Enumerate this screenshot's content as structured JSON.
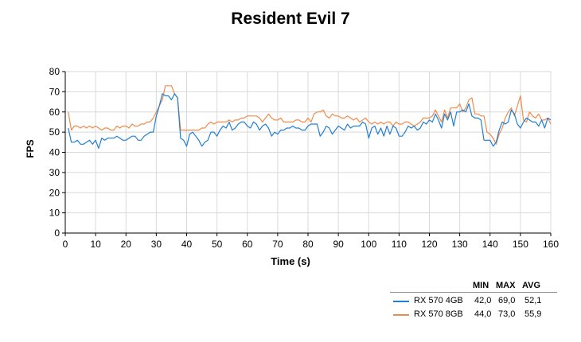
{
  "chart_data": {
    "type": "line",
    "title": "Resident Evil 7",
    "xlabel": "Time (s)",
    "ylabel": "FPS",
    "xlim": [
      0,
      160
    ],
    "ylim": [
      0,
      80
    ],
    "xticks": [
      0,
      10,
      20,
      30,
      40,
      50,
      60,
      70,
      80,
      90,
      100,
      110,
      120,
      130,
      140,
      150,
      160
    ],
    "yticks": [
      0,
      10,
      20,
      30,
      40,
      50,
      60,
      70,
      80
    ],
    "grid": true,
    "legend_position": "bottom-right",
    "legend_headers": [
      "MIN",
      "MAX",
      "AVG"
    ],
    "series": [
      {
        "name": "RX 570 4GB",
        "color": "#1f7fd4",
        "min": "42,0",
        "max": "69,0",
        "avg": "52,1",
        "x": [
          1,
          2,
          3,
          4,
          5,
          6,
          7,
          8,
          9,
          10,
          11,
          12,
          13,
          14,
          15,
          16,
          17,
          18,
          19,
          20,
          21,
          22,
          23,
          24,
          25,
          26,
          27,
          28,
          29,
          30,
          31,
          32,
          33,
          34,
          35,
          36,
          37,
          38,
          39,
          40,
          41,
          42,
          43,
          44,
          45,
          46,
          47,
          48,
          49,
          50,
          51,
          52,
          53,
          54,
          55,
          56,
          57,
          58,
          59,
          60,
          61,
          62,
          63,
          64,
          65,
          66,
          67,
          68,
          69,
          70,
          71,
          72,
          73,
          74,
          75,
          76,
          77,
          78,
          79,
          80,
          81,
          82,
          83,
          84,
          85,
          86,
          87,
          88,
          89,
          90,
          91,
          92,
          93,
          94,
          95,
          96,
          97,
          98,
          99,
          100,
          101,
          102,
          103,
          104,
          105,
          106,
          107,
          108,
          109,
          110,
          111,
          112,
          113,
          114,
          115,
          116,
          117,
          118,
          119,
          120,
          121,
          122,
          123,
          124,
          125,
          126,
          127,
          128,
          129,
          130,
          131,
          132,
          133,
          134,
          135,
          136,
          137,
          138,
          139,
          140,
          141,
          142,
          143,
          144,
          145,
          146,
          147,
          148,
          149,
          150,
          151,
          152,
          153,
          154,
          155,
          156,
          157,
          158,
          159,
          160
        ],
        "values": [
          52,
          45,
          45,
          46,
          44,
          44,
          45,
          46,
          44,
          46,
          42,
          47,
          46,
          47,
          47,
          47,
          48,
          47,
          46,
          46,
          47,
          48,
          48,
          46,
          46,
          48,
          49,
          50,
          50,
          58,
          63,
          69,
          68,
          68,
          66,
          69,
          67,
          47,
          46,
          43,
          49,
          50,
          48,
          46,
          43,
          45,
          46,
          50,
          50,
          48,
          51,
          53,
          52,
          55,
          51,
          52,
          54,
          55,
          55,
          53,
          52,
          55,
          54,
          51,
          53,
          54,
          52,
          48,
          50,
          49,
          51,
          51,
          52,
          52,
          53,
          52,
          52,
          51,
          51,
          53,
          54,
          54,
          54,
          48,
          50,
          53,
          52,
          49,
          51,
          53,
          52,
          51,
          54,
          52,
          53,
          53,
          53,
          55,
          54,
          47,
          52,
          53,
          49,
          52,
          48,
          53,
          49,
          53,
          52,
          48,
          48,
          50,
          53,
          52,
          53,
          51,
          52,
          55,
          54,
          56,
          55,
          59,
          56,
          52,
          59,
          56,
          60,
          53,
          60,
          60,
          61,
          60,
          64,
          58,
          57,
          57,
          56,
          46,
          46,
          46,
          43,
          45,
          51,
          55,
          54,
          55,
          61,
          59,
          54,
          52,
          55,
          57,
          56,
          55,
          55,
          53,
          56,
          52,
          57,
          56
        ]
      },
      {
        "name": "RX 570 8GB",
        "color": "#f28a4b",
        "min": "44,0",
        "max": "73,0",
        "avg": "55,9",
        "x": [
          1,
          2,
          3,
          4,
          5,
          6,
          7,
          8,
          9,
          10,
          11,
          12,
          13,
          14,
          15,
          16,
          17,
          18,
          19,
          20,
          21,
          22,
          23,
          24,
          25,
          26,
          27,
          28,
          29,
          30,
          31,
          32,
          33,
          34,
          35,
          36,
          37,
          38,
          39,
          40,
          41,
          42,
          43,
          44,
          45,
          46,
          47,
          48,
          49,
          50,
          51,
          52,
          53,
          54,
          55,
          56,
          57,
          58,
          59,
          60,
          61,
          62,
          63,
          64,
          65,
          66,
          67,
          68,
          69,
          70,
          71,
          72,
          73,
          74,
          75,
          76,
          77,
          78,
          79,
          80,
          81,
          82,
          83,
          84,
          85,
          86,
          87,
          88,
          89,
          90,
          91,
          92,
          93,
          94,
          95,
          96,
          97,
          98,
          99,
          100,
          101,
          102,
          103,
          104,
          105,
          106,
          107,
          108,
          109,
          110,
          111,
          112,
          113,
          114,
          115,
          116,
          117,
          118,
          119,
          120,
          121,
          122,
          123,
          124,
          125,
          126,
          127,
          128,
          129,
          130,
          131,
          132,
          133,
          134,
          135,
          136,
          137,
          138,
          139,
          140,
          141,
          142,
          143,
          144,
          145,
          146,
          147,
          148,
          149,
          150,
          151,
          152,
          153,
          154,
          155,
          156,
          157,
          158,
          159,
          160
        ],
        "values": [
          60,
          51,
          53,
          53,
          52,
          53,
          52,
          53,
          52,
          53,
          52,
          51,
          52,
          52,
          51,
          51,
          53,
          52,
          53,
          53,
          52,
          54,
          53,
          53,
          54,
          54,
          55,
          55,
          57,
          60,
          63,
          66,
          73,
          73,
          73,
          69,
          67,
          51,
          51,
          51,
          51,
          51,
          51,
          51,
          52,
          52,
          54,
          55,
          54,
          55,
          55,
          55,
          55,
          56,
          55,
          56,
          56,
          57,
          57,
          58,
          58,
          58,
          58,
          57,
          55,
          57,
          59,
          57,
          56,
          56,
          57,
          55,
          55,
          55,
          55,
          56,
          56,
          55,
          55,
          57,
          55,
          59,
          60,
          60,
          61,
          58,
          57,
          59,
          58,
          58,
          57,
          57,
          58,
          57,
          56,
          57,
          55,
          56,
          57,
          55,
          54,
          55,
          54,
          55,
          54,
          55,
          55,
          53,
          55,
          54,
          54,
          55,
          55,
          54,
          53,
          54,
          55,
          57,
          57,
          57,
          58,
          61,
          58,
          55,
          61,
          57,
          62,
          62,
          62,
          64,
          60,
          62,
          66,
          67,
          59,
          59,
          58,
          58,
          50,
          49,
          47,
          44,
          49,
          52,
          57,
          60,
          62,
          58,
          63,
          68,
          56,
          55,
          60,
          58,
          57,
          59,
          56,
          56,
          57,
          54
        ]
      }
    ]
  }
}
